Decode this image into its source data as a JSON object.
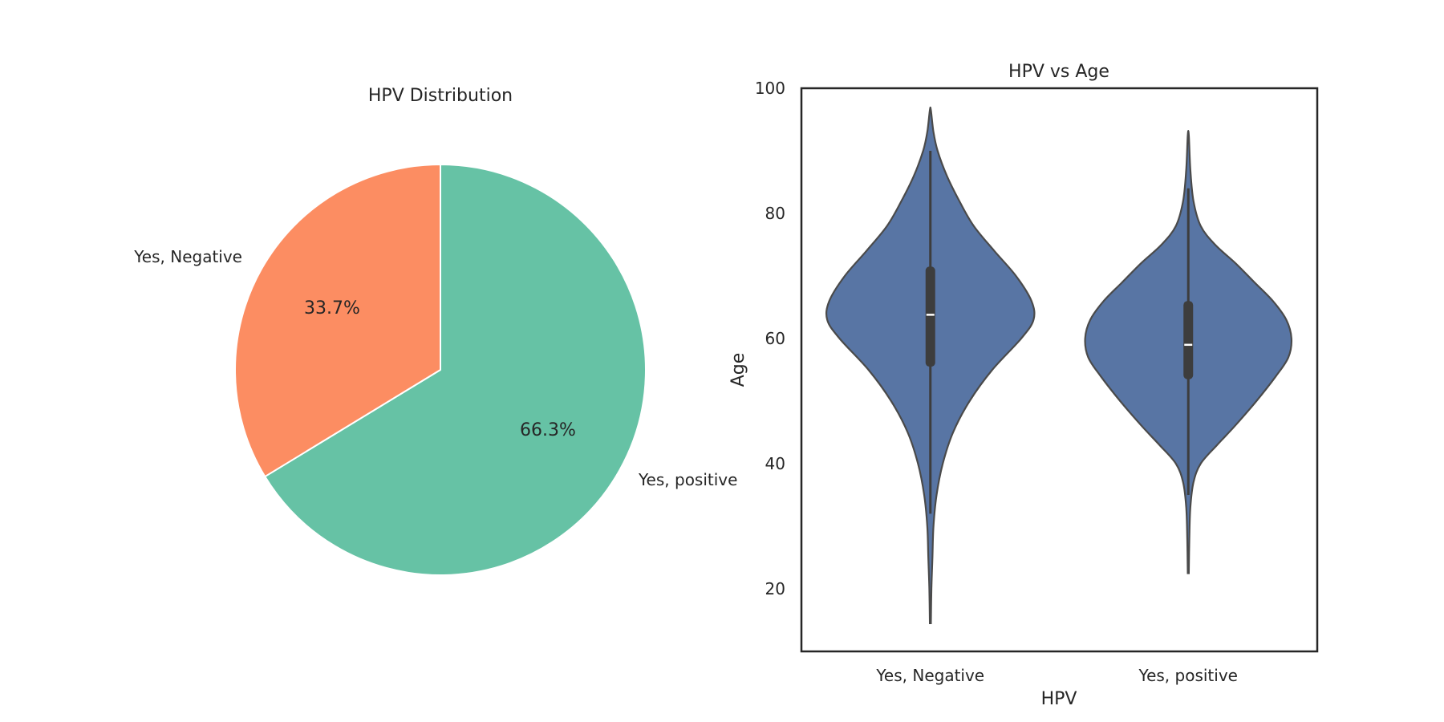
{
  "chart_data": [
    {
      "type": "pie",
      "title": "HPV Distribution",
      "slices": [
        {
          "label": "Yes, positive",
          "percent": 66.3,
          "pct_label": "66.3%",
          "color": "#66c2a5"
        },
        {
          "label": "Yes, Negative",
          "percent": 33.7,
          "pct_label": "33.7%",
          "color": "#fc8d62"
        }
      ],
      "start_angle_deg": 90,
      "direction": "clockwise"
    },
    {
      "type": "violin",
      "title": "HPV vs Age",
      "xlabel": "HPV",
      "ylabel": "Age",
      "categories": [
        "Yes, Negative",
        "Yes, positive"
      ],
      "ylim": [
        10,
        100
      ],
      "yticks": [
        20,
        40,
        60,
        80,
        100
      ],
      "color": "#5875a4",
      "grid": false,
      "series": [
        {
          "category": "Yes, Negative",
          "min": 14.5,
          "max": 96.5,
          "q1": 55.5,
          "median": 63.8,
          "q3": 71.5,
          "whisker_low": 32,
          "whisker_high": 90,
          "density_profile": [
            [
              14.5,
              0.005
            ],
            [
              20,
              0.01
            ],
            [
              25,
              0.02
            ],
            [
              30,
              0.03
            ],
            [
              35,
              0.06
            ],
            [
              40,
              0.12
            ],
            [
              45,
              0.22
            ],
            [
              50,
              0.38
            ],
            [
              55,
              0.6
            ],
            [
              60,
              0.88
            ],
            [
              63,
              1.0
            ],
            [
              66,
              0.98
            ],
            [
              70,
              0.83
            ],
            [
              74,
              0.62
            ],
            [
              78,
              0.42
            ],
            [
              82,
              0.28
            ],
            [
              86,
              0.16
            ],
            [
              90,
              0.07
            ],
            [
              93,
              0.03
            ],
            [
              96.5,
              0.005
            ]
          ]
        },
        {
          "category": "Yes, positive",
          "min": 22.5,
          "max": 92.5,
          "q1": 53.5,
          "median": 59.0,
          "q3": 66.0,
          "whisker_low": 35,
          "whisker_high": 84,
          "density_profile": [
            [
              22.5,
              0.005
            ],
            [
              28,
              0.01
            ],
            [
              33,
              0.02
            ],
            [
              37,
              0.05
            ],
            [
              40,
              0.12
            ],
            [
              43,
              0.28
            ],
            [
              46,
              0.45
            ],
            [
              50,
              0.66
            ],
            [
              54,
              0.85
            ],
            [
              57,
              0.97
            ],
            [
              60,
              1.0
            ],
            [
              63,
              0.95
            ],
            [
              66,
              0.82
            ],
            [
              69,
              0.64
            ],
            [
              72,
              0.46
            ],
            [
              75,
              0.26
            ],
            [
              78,
              0.12
            ],
            [
              82,
              0.05
            ],
            [
              87,
              0.02
            ],
            [
              92.5,
              0.005
            ]
          ]
        }
      ]
    }
  ]
}
